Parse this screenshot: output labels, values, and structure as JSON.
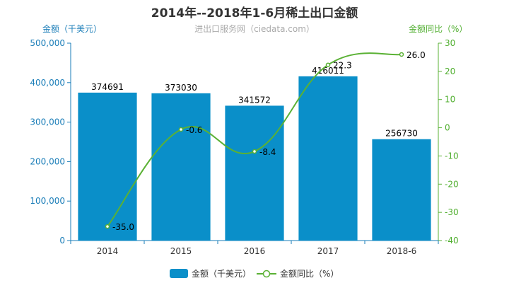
{
  "title": "2014年--2018年1-6月稀土出口金额",
  "subtitle": "进出口服务网（ciedata.com）",
  "chart_data": {
    "type": "bar",
    "categories": [
      "2014",
      "2015",
      "2016",
      "2017",
      "2018-6"
    ],
    "series": [
      {
        "name": "金额（千美元）",
        "type": "bar",
        "axis": "left",
        "values": [
          374691,
          373030,
          341572,
          416011,
          256730
        ],
        "labels": [
          "374691",
          "373030",
          "341572",
          "416011",
          "256730"
        ],
        "color": "#0a8fc9"
      },
      {
        "name": "金额同比（%）",
        "type": "line",
        "axis": "right",
        "values": [
          -35.0,
          -0.6,
          -8.4,
          22.3,
          26.0
        ],
        "labels": [
          "-35.0",
          "-0.6",
          "-8.4",
          "22.3",
          "26.0"
        ],
        "color": "#5ab134"
      }
    ],
    "ylabel": "金额（千美元）",
    "y2label": "金额同比（%）",
    "ylim": [
      0,
      500000
    ],
    "y2lim": [
      -40,
      30
    ],
    "yticks": [
      "0",
      "100,000",
      "200,000",
      "300,000",
      "400,000",
      "500,000"
    ],
    "y2ticks": [
      "-40",
      "-30",
      "-20",
      "-10",
      "0",
      "10",
      "20",
      "30"
    ],
    "legend": "bottom",
    "grid": false
  }
}
